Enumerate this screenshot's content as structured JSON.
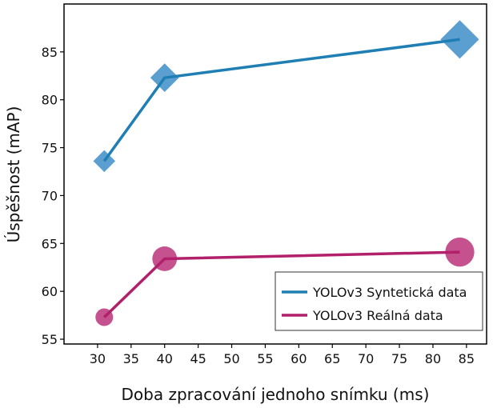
{
  "chart_data": {
    "type": "line",
    "title": "",
    "xlabel": "Doba zpracování jednoho snímku (ms)",
    "ylabel": "Úspěšnost (mAP)",
    "xlim": [
      25,
      88
    ],
    "ylim": [
      54.5,
      90
    ],
    "xticks": [
      "30",
      "35",
      "40",
      "45",
      "50",
      "55",
      "60",
      "65",
      "70",
      "75",
      "80",
      "85"
    ],
    "yticks": [
      "55",
      "60",
      "65",
      "70",
      "75",
      "80",
      "85"
    ],
    "grid": false,
    "legend_position": "bottom-right",
    "series": [
      {
        "name": "YOLOv3 Syntetická data",
        "line_color": "#1f7fb4",
        "marker": "diamond",
        "marker_color": "#5b9fd1",
        "points": [
          {
            "x": 31,
            "y": 73.6,
            "size": 1.0
          },
          {
            "x": 40,
            "y": 82.3,
            "size": 1.3
          },
          {
            "x": 84,
            "y": 86.3,
            "size": 1.75
          }
        ]
      },
      {
        "name": "YOLOv3 Reálná data",
        "line_color": "#b21f6a",
        "marker": "circle",
        "marker_color": "#c5528e",
        "points": [
          {
            "x": 31,
            "y": 57.3,
            "size": 1.0
          },
          {
            "x": 40,
            "y": 63.4,
            "size": 1.4
          },
          {
            "x": 84,
            "y": 64.1,
            "size": 1.65
          }
        ]
      }
    ]
  }
}
